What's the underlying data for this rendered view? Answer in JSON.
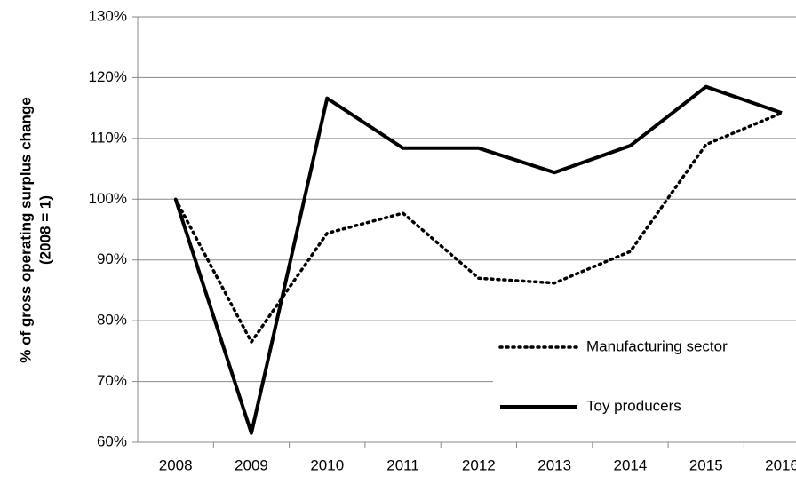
{
  "chart_data": {
    "type": "line",
    "y_axis_label": [
      "% of gross operating surplus change",
      "(2008 = 1)"
    ],
    "categories": [
      "2008",
      "2009",
      "2010",
      "2011",
      "2012",
      "2013",
      "2014",
      "2015",
      "2016"
    ],
    "series": [
      {
        "name": "Manufacturing sector",
        "color": "#000000",
        "dash": "dotted",
        "values": [
          100,
          76.5,
          94.4,
          97.7,
          87,
          86.2,
          91.4,
          109,
          114.2
        ]
      },
      {
        "name": "Toy producers",
        "color": "#000000",
        "dash": "solid",
        "values": [
          100,
          61.5,
          116.6,
          108.4,
          108.4,
          104.4,
          108.8,
          118.5,
          114.2
        ]
      }
    ],
    "ylim": [
      60,
      130
    ],
    "yticks": [
      {
        "value": 60,
        "label": "60%"
      },
      {
        "value": 70,
        "label": "70%"
      },
      {
        "value": 80,
        "label": "80%"
      },
      {
        "value": 90,
        "label": "90%"
      },
      {
        "value": 100,
        "label": "100%"
      },
      {
        "value": 110,
        "label": "110%"
      },
      {
        "value": 120,
        "label": "120%"
      },
      {
        "value": 130,
        "label": "130%"
      }
    ],
    "grid": true,
    "legend": "lower right"
  }
}
